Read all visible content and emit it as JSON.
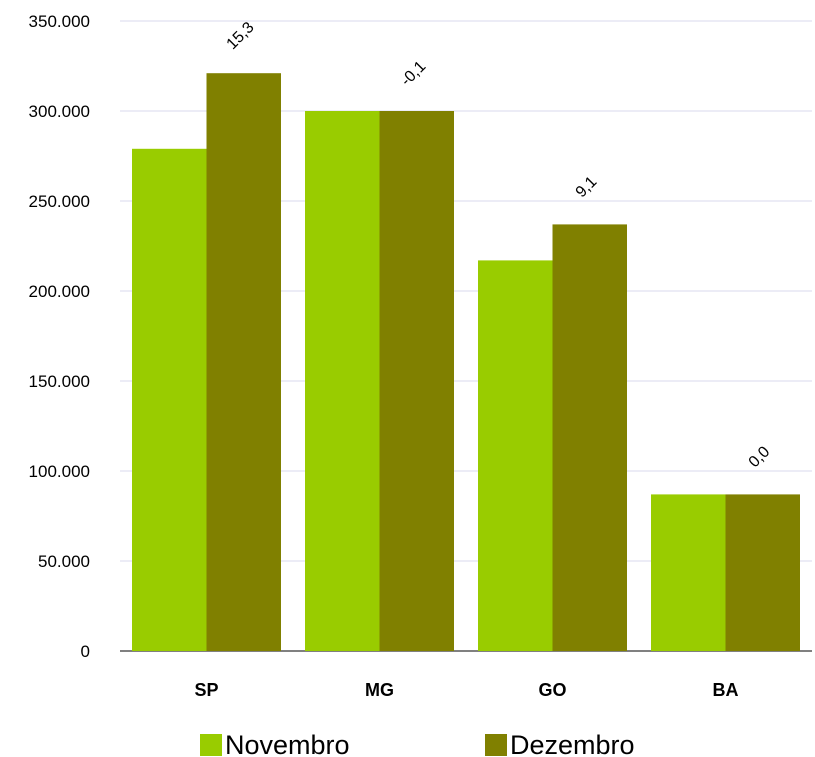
{
  "chart_data": {
    "type": "bar",
    "title": "",
    "xlabel": "",
    "ylabel": "",
    "categories": [
      "SP",
      "MG",
      "GO",
      "BA"
    ],
    "series": [
      {
        "name": "Novembro",
        "color": "#99cc00",
        "values": [
          279000,
          300000,
          217000,
          87000
        ]
      },
      {
        "name": "Dezembro",
        "color": "#808000",
        "values": [
          321000,
          300000,
          237000,
          87000
        ]
      }
    ],
    "data_labels": [
      "15,3",
      "-0,1",
      "9,1",
      "0,0"
    ],
    "ylim": [
      0,
      350000
    ],
    "yticks": [
      0,
      50000,
      100000,
      150000,
      200000,
      250000,
      300000,
      350000
    ],
    "ytick_labels": [
      "0",
      "50.000",
      "100.000",
      "150.000",
      "200.000",
      "250.000",
      "300.000",
      "350.000"
    ],
    "grid": true,
    "legend_position": "bottom"
  }
}
